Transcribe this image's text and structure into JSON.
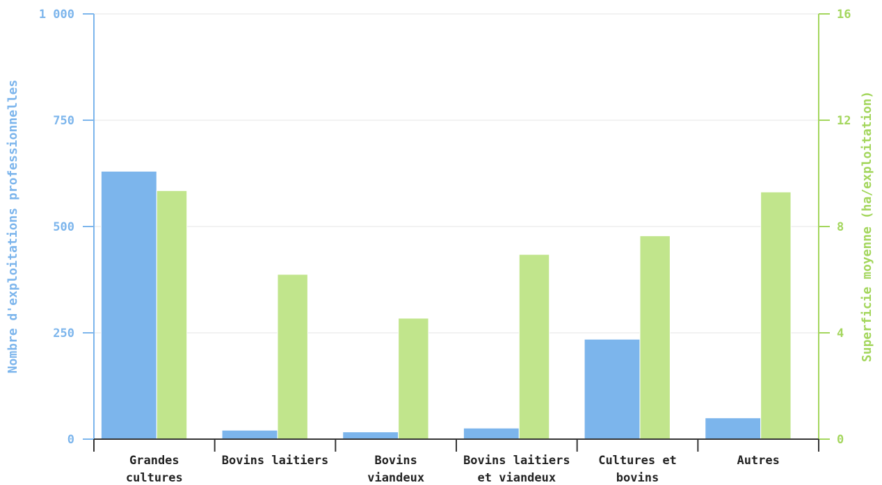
{
  "chart_data": {
    "type": "bar",
    "categories": [
      [
        "Grandes",
        "cultures"
      ],
      [
        "Bovins laitiers"
      ],
      [
        "Bovins",
        "viandeux"
      ],
      [
        "Bovins laitiers",
        "et viandeux"
      ],
      [
        "Cultures et",
        "bovins"
      ],
      [
        "Autres"
      ]
    ],
    "series": [
      {
        "name": "Nombre d'exploitations professionnelles",
        "axis": "left",
        "color": "#7cb5ec",
        "values": [
          630,
          21,
          17,
          26,
          235,
          50
        ]
      },
      {
        "name": "Superficie moyenne (ha/exploitation)",
        "axis": "right",
        "color": "#c1e58c",
        "values": [
          9.35,
          6.2,
          4.55,
          6.95,
          7.65,
          9.3
        ]
      }
    ],
    "ylabel_left": "Nombre d'exploitations professionnelles",
    "ylabel_right": "Superficie moyenne (ha/exploitation)",
    "ylim_left": [
      0,
      1000
    ],
    "ylim_right": [
      0,
      16
    ],
    "yticks_left": [
      {
        "value": 0,
        "label": "0"
      },
      {
        "value": 250,
        "label": "250"
      },
      {
        "value": 500,
        "label": "500"
      },
      {
        "value": 750,
        "label": "750"
      },
      {
        "value": 1000,
        "label": "1 000"
      }
    ],
    "yticks_right": [
      {
        "value": 0,
        "label": "0"
      },
      {
        "value": 4,
        "label": "4"
      },
      {
        "value": 8,
        "label": "8"
      },
      {
        "value": 12,
        "label": "12"
      },
      {
        "value": 16,
        "label": "16"
      }
    ],
    "grid": true,
    "legend": "none"
  }
}
